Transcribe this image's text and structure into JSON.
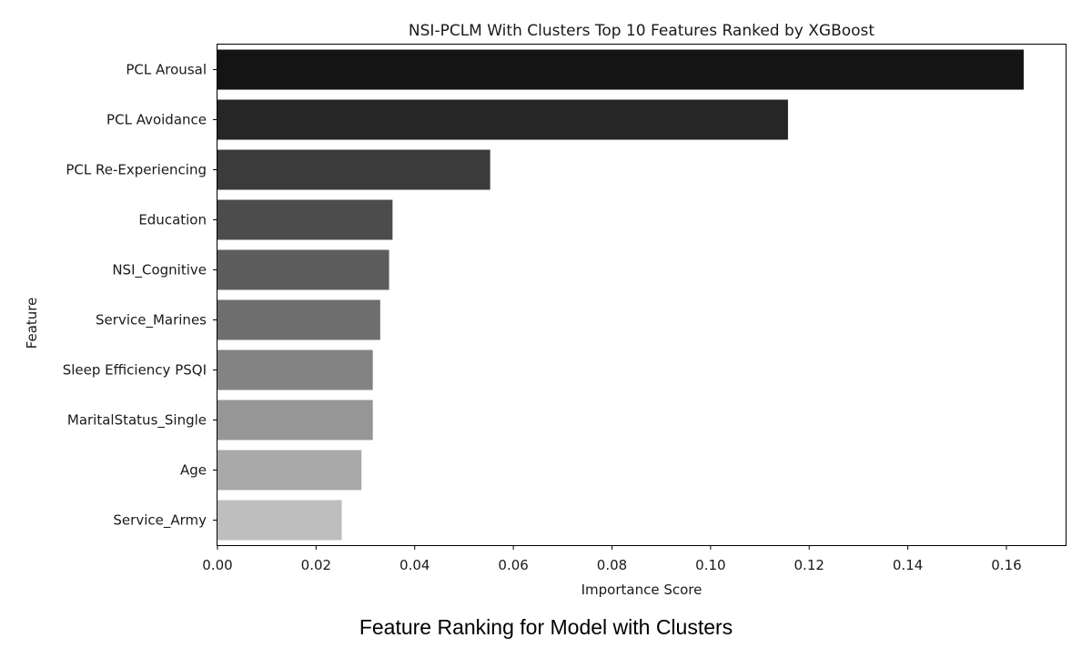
{
  "caption": "Feature Ranking for Model with Clusters",
  "chart_data": {
    "type": "bar",
    "orientation": "horizontal",
    "title": "NSI-PCLM With Clusters Top 10 Features Ranked by XGBoost",
    "xlabel": "Importance Score",
    "ylabel": "Feature",
    "xlim": [
      0,
      0.172
    ],
    "xticks": [
      "0.00",
      "0.02",
      "0.04",
      "0.06",
      "0.08",
      "0.10",
      "0.12",
      "0.14",
      "0.16"
    ],
    "grid": false,
    "categories": [
      "PCL Arousal",
      "PCL Avoidance",
      "PCL Re-Experiencing",
      "Education",
      "NSI_Cognitive",
      "Service_Marines",
      "Sleep Efficiency PSQI",
      "MaritalStatus_Single",
      "Age",
      "Service_Army"
    ],
    "values": [
      0.1635,
      0.1157,
      0.0553,
      0.0355,
      0.0348,
      0.033,
      0.0315,
      0.0315,
      0.0292,
      0.0252
    ],
    "colors": [
      "#141414",
      "#262626",
      "#3b3b3b",
      "#4c4c4c",
      "#5d5d5d",
      "#6e6e6e",
      "#838383",
      "#969696",
      "#a9a9a9",
      "#bebebe"
    ]
  }
}
